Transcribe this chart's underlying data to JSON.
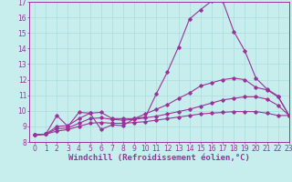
{
  "xlabel": "Windchill (Refroidissement éolien,°C)",
  "xlim": [
    -0.5,
    23
  ],
  "ylim": [
    8,
    17
  ],
  "xticks": [
    0,
    1,
    2,
    3,
    4,
    5,
    6,
    7,
    8,
    9,
    10,
    11,
    12,
    13,
    14,
    15,
    16,
    17,
    18,
    19,
    20,
    21,
    22,
    23
  ],
  "yticks": [
    8,
    9,
    10,
    11,
    12,
    13,
    14,
    15,
    16,
    17
  ],
  "bg_color": "#c8eded",
  "grid_color": "#aadddd",
  "line_color": "#993399",
  "line1_x": [
    0,
    1,
    2,
    3,
    4,
    5,
    6,
    7,
    8,
    9,
    10,
    11,
    12,
    13,
    14,
    15,
    16,
    17,
    18,
    19,
    20,
    21,
    22,
    23
  ],
  "line1_y": [
    8.45,
    8.5,
    9.7,
    9.0,
    9.9,
    9.85,
    8.8,
    9.1,
    9.05,
    9.5,
    9.6,
    11.1,
    12.5,
    14.1,
    15.9,
    16.5,
    17.05,
    17.05,
    15.1,
    13.85,
    12.1,
    11.4,
    10.95,
    9.7
  ],
  "line2_x": [
    0,
    1,
    2,
    3,
    4,
    5,
    6,
    7,
    8,
    9,
    10,
    11,
    12,
    13,
    14,
    15,
    16,
    17,
    18,
    19,
    20,
    21,
    22,
    23
  ],
  "line2_y": [
    8.45,
    8.5,
    9.0,
    9.05,
    9.5,
    9.85,
    9.9,
    9.5,
    9.5,
    9.5,
    9.8,
    10.1,
    10.4,
    10.8,
    11.15,
    11.6,
    11.8,
    12.0,
    12.1,
    12.0,
    11.5,
    11.35,
    10.9,
    9.7
  ],
  "line3_x": [
    0,
    1,
    2,
    3,
    4,
    5,
    6,
    7,
    8,
    9,
    10,
    11,
    12,
    13,
    14,
    15,
    16,
    17,
    18,
    19,
    20,
    21,
    22,
    23
  ],
  "line3_y": [
    8.45,
    8.5,
    8.85,
    8.9,
    9.2,
    9.5,
    9.55,
    9.45,
    9.4,
    9.45,
    9.55,
    9.65,
    9.8,
    9.95,
    10.1,
    10.3,
    10.5,
    10.7,
    10.8,
    10.9,
    10.9,
    10.75,
    10.35,
    9.7
  ],
  "line4_x": [
    0,
    1,
    2,
    3,
    4,
    5,
    6,
    7,
    8,
    9,
    10,
    11,
    12,
    13,
    14,
    15,
    16,
    17,
    18,
    19,
    20,
    21,
    22,
    23
  ],
  "line4_y": [
    8.45,
    8.5,
    8.7,
    8.8,
    9.0,
    9.2,
    9.25,
    9.2,
    9.2,
    9.25,
    9.3,
    9.4,
    9.5,
    9.6,
    9.7,
    9.8,
    9.85,
    9.9,
    9.95,
    9.95,
    9.95,
    9.85,
    9.7,
    9.7
  ],
  "tick_fontsize": 5.5,
  "xlabel_fontsize": 6.5
}
